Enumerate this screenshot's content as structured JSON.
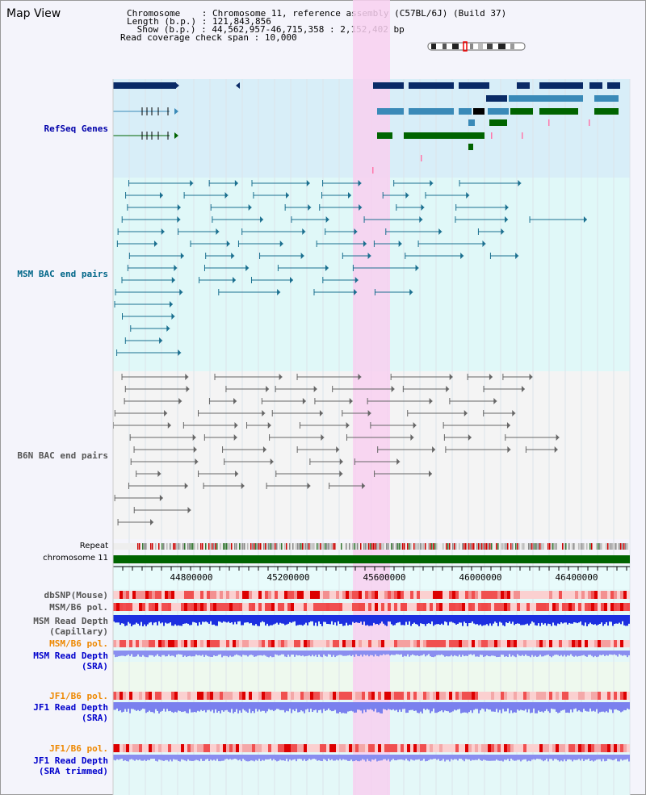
{
  "page": {
    "title": "Map View"
  },
  "header": {
    "chromosome_label": "Chromosome    ",
    "chromosome_value": "Chromosome 11, reference assembly (C57BL/6J) (Build 37)",
    "length_label": "Length (b.p.) ",
    "length_value": "121,843,856",
    "show_label": " Show (b.p.) ",
    "show_value": "44,562,957-46,715,358 : 2,152,402 bp",
    "span_label": "Read coverage check span ",
    "span_value": "10,000"
  },
  "tracks": {
    "refseq": "RefSeq Genes",
    "msm_bac": "MSM BAC end pairs",
    "b6n_bac": "B6N BAC end pairs",
    "repeat": "Repeat",
    "chromosome": "chromosome 11",
    "dbsnp": "dbSNP(Mouse)",
    "msm_b6_pol_1": "MSM/B6 pol.",
    "msm_depth_cap_1": "MSM Read Depth",
    "msm_depth_cap_2": "(Capillary)",
    "msm_b6_pol_2": "MSM/B6 pol.",
    "msm_depth_sra_1": "MSM Read Depth",
    "msm_depth_sra_2": "(SRA)",
    "jf1_b6_pol_1": "JF1/B6 pol.",
    "jf1_depth_sra_1": "JF1 Read Depth",
    "jf1_depth_sra_2": "(SRA)",
    "jf1_b6_pol_2": "JF1/B6 pol.",
    "jf1_depth_trim_1": "JF1 Read Depth",
    "jf1_depth_trim_2": "(SRA trimmed)"
  },
  "ruler": {
    "ticks": [
      "44800000",
      "45200000",
      "45600000",
      "46000000",
      "46400000"
    ]
  },
  "colors": {
    "refseq_label": "#0000aa",
    "msm_label": "#006688",
    "b6n_label": "#555555",
    "pol_label_orange": "#ee8800",
    "depth_label_blue": "#0000cc",
    "highlight": "#f8d0f0"
  }
}
